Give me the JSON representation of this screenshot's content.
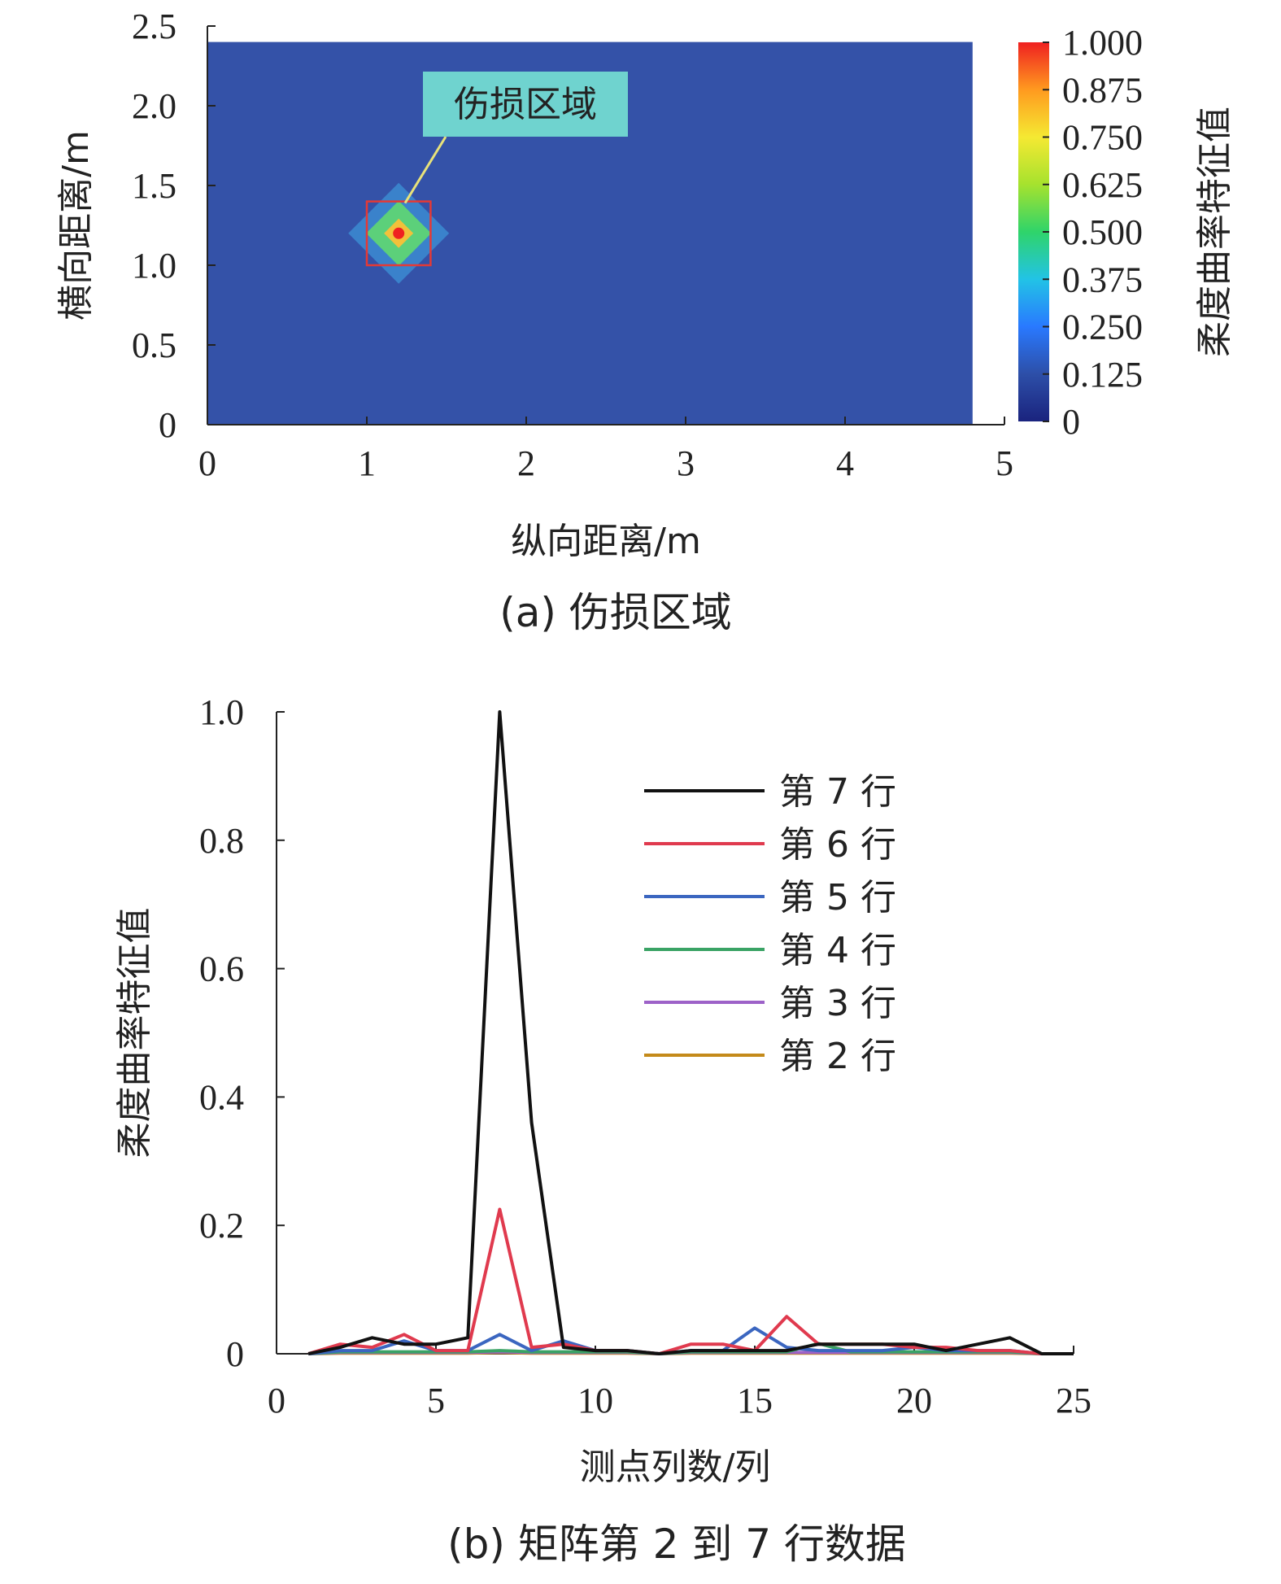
{
  "chart_data": [
    {
      "type": "heatmap",
      "caption": "(a) 伤损区域",
      "xlabel": "纵向距离/m",
      "ylabel": "横向距离/m",
      "xlim": [
        0,
        5
      ],
      "ylim": [
        0,
        2.5
      ],
      "xticks": [
        "0",
        "1",
        "2",
        "3",
        "4",
        "5"
      ],
      "yticks": [
        "0",
        "0.5",
        "1.0",
        "1.5",
        "2.0",
        "2.5"
      ],
      "field_extent": {
        "x": [
          0,
          4.8
        ],
        "y": [
          0,
          2.4
        ]
      },
      "peak": {
        "x": 1.2,
        "y": 1.2,
        "value": 1.0
      },
      "colorbar": {
        "label": "柔度曲率特征值",
        "ticks": [
          "0",
          "0.125",
          "0.250",
          "0.375",
          "0.500",
          "0.625",
          "0.750",
          "0.875",
          "1.000"
        ],
        "range": [
          0,
          1
        ],
        "stops": [
          "#1a237e",
          "#2d4fa8",
          "#2979ff",
          "#22c3e6",
          "#2fd46a",
          "#a6e22e",
          "#f5e932",
          "#ff9a1f",
          "#ef2020"
        ]
      },
      "background_color": "#3452a8",
      "annotation": "伤损区域",
      "annotation_color": "#6fd3cf",
      "highlight_box_color": "#e53935"
    },
    {
      "type": "line",
      "caption": "(b) 矩阵第 2 到 7 行数据",
      "xlabel": "测点列数/列",
      "ylabel": "柔度曲率特征值",
      "xlim": [
        0,
        25
      ],
      "ylim": [
        0,
        1.0
      ],
      "xticks": [
        "0",
        "5",
        "10",
        "15",
        "20",
        "25"
      ],
      "yticks": [
        "0",
        "0.2",
        "0.4",
        "0.6",
        "0.8",
        "1.0"
      ],
      "x": [
        1,
        2,
        3,
        4,
        5,
        6,
        7,
        8,
        9,
        10,
        11,
        12,
        13,
        14,
        15,
        16,
        17,
        18,
        19,
        20,
        21,
        22,
        23,
        24,
        25
      ],
      "series": [
        {
          "name": "第 7 行",
          "color": "#111111",
          "values": [
            0,
            0.01,
            0.025,
            0.015,
            0.015,
            0.025,
            1.0,
            0.36,
            0.01,
            0.005,
            0.005,
            0,
            0.005,
            0.005,
            0.005,
            0.005,
            0.015,
            0.015,
            0.015,
            0.015,
            0.005,
            0.015,
            0.025,
            0,
            0
          ]
        },
        {
          "name": "第 6 行",
          "color": "#e03a4e",
          "values": [
            0,
            0.015,
            0.01,
            0.03,
            0.005,
            0.005,
            0.225,
            0.01,
            0.015,
            0.005,
            0.005,
            0,
            0.015,
            0.015,
            0.005,
            0.058,
            0.015,
            0.015,
            0.015,
            0.01,
            0.01,
            0.005,
            0.005,
            0,
            0
          ]
        },
        {
          "name": "第 5 行",
          "color": "#3b66c0",
          "values": [
            0,
            0.005,
            0.005,
            0.02,
            0.005,
            0.005,
            0.03,
            0.005,
            0.02,
            0.005,
            0.005,
            0,
            0.005,
            0.005,
            0.04,
            0.01,
            0.005,
            0.005,
            0.005,
            0.01,
            0.005,
            0.005,
            0.005,
            0,
            0
          ]
        },
        {
          "name": "第 4 行",
          "color": "#3aa365",
          "values": [
            0,
            0.003,
            0.003,
            0.003,
            0.003,
            0.003,
            0.005,
            0.003,
            0.003,
            0.003,
            0.003,
            0,
            0.003,
            0.003,
            0.003,
            0.003,
            0.016,
            0.003,
            0.003,
            0.003,
            0.003,
            0.003,
            0.003,
            0,
            0
          ]
        },
        {
          "name": "第 3 行",
          "color": "#9d62c8",
          "values": [
            0,
            0.002,
            0.002,
            0.002,
            0.002,
            0.002,
            0.003,
            0.002,
            0.002,
            0.002,
            0.002,
            0,
            0.002,
            0.002,
            0.002,
            0.002,
            0.002,
            0.002,
            0.002,
            0.002,
            0.002,
            0.002,
            0.002,
            0,
            0
          ]
        },
        {
          "name": "第 2 行",
          "color": "#c48a1a",
          "values": [
            0,
            0.001,
            0.001,
            0.001,
            0.001,
            0.001,
            0.002,
            0.001,
            0.001,
            0.001,
            0.001,
            0,
            0.001,
            0.001,
            0.001,
            0.001,
            0.001,
            0.001,
            0.001,
            0.001,
            0.001,
            0.001,
            0.001,
            0,
            0
          ]
        }
      ],
      "legend_position": "upper-right"
    }
  ]
}
